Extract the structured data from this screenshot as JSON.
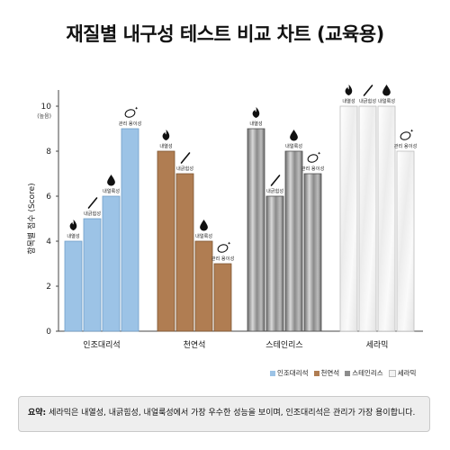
{
  "chart_data": {
    "type": "bar",
    "title": "재질별 내구성 테스트 비교 차트 (교육용)",
    "ylabel": "항목별 점수 (Score)",
    "ylim": [
      0,
      10
    ],
    "yticks": [
      {
        "value": 0,
        "label": "0"
      },
      {
        "value": 2,
        "label": "2"
      },
      {
        "value": 4,
        "label": "4"
      },
      {
        "value": 6,
        "label": "6"
      },
      {
        "value": 8,
        "label": "8"
      },
      {
        "value": 10,
        "label": "10"
      }
    ],
    "ytick_note": "(높음)",
    "categories": [
      "인조대리석",
      "천연석",
      "스테인리스",
      "세라믹"
    ],
    "metrics": [
      {
        "label": "내열성",
        "icon": "flame-icon"
      },
      {
        "label": "내긁힘성",
        "icon": "knife-icon"
      },
      {
        "label": "내얼룩성",
        "icon": "drop-icon"
      },
      {
        "label": "관리 용이성",
        "icon": "sponge-icon"
      }
    ],
    "series": [
      {
        "name": "인조대리석",
        "color": "#9cc3e6",
        "values": [
          4,
          5,
          6,
          9
        ]
      },
      {
        "name": "천연석",
        "color": "#b07d52",
        "values": [
          8,
          7,
          4,
          3
        ]
      },
      {
        "name": "스테인리스",
        "color": "#8c8c8c",
        "values": [
          9,
          6,
          8,
          7
        ]
      },
      {
        "name": "세라믹",
        "color": "#f3f3f3",
        "values": [
          10,
          10,
          10,
          8
        ]
      }
    ],
    "legend_position": "bottom-right",
    "grid": false
  },
  "summary": {
    "prefix": "요약:",
    "text": "세라믹은 내열성, 내긁힘성, 내얼룩성에서 가장 우수한 성능을 보이며, 인조대리석은 관리가 가장 용이합니다."
  }
}
